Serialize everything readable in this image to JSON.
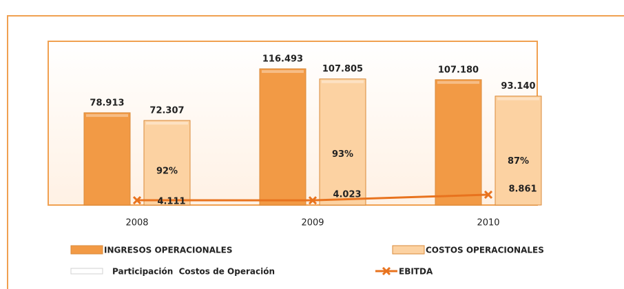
{
  "chart_data": {
    "type": "bar",
    "categories": [
      "2008",
      "2009",
      "2010"
    ],
    "ylim": [
      0,
      140
    ],
    "series": [
      {
        "name": "INGRESOS OPERACIONALES",
        "color": "#f29a45",
        "values": [
          78.913,
          116.493,
          107.18
        ],
        "value_labels": [
          "78.913",
          "116.493",
          "107.180"
        ]
      },
      {
        "name": "COSTOS OPERACIONALES",
        "color": "#fcd2a2",
        "values": [
          72.307,
          107.805,
          93.14
        ],
        "value_labels": [
          "72.307",
          "107.805",
          "93.140"
        ]
      },
      {
        "name": "Participación  Costos de Operación",
        "type": "label",
        "color": "#d0d0d0",
        "values": [
          92,
          93,
          87
        ],
        "value_labels": [
          "92%",
          "93%",
          "87%"
        ]
      },
      {
        "name": "EBITDA",
        "type": "line",
        "color": "#e8731e",
        "values": [
          4.111,
          4.023,
          8.861
        ],
        "value_labels": [
          "4.111",
          "4.023",
          "8.861"
        ]
      }
    ]
  }
}
